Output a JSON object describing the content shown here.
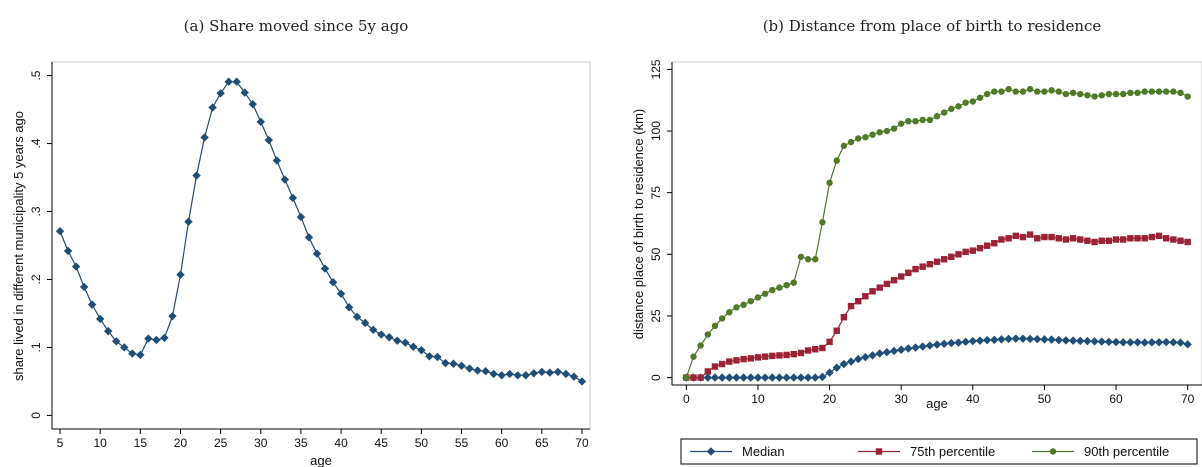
{
  "chart_data": [
    {
      "type": "line",
      "title": "(a) Share moved since 5y ago",
      "xlabel": "age",
      "ylabel": "share lived in different municipality 5 years ago",
      "xlim": [
        4,
        71
      ],
      "ylim": [
        -0.02,
        0.52
      ],
      "xticks": [
        5,
        10,
        15,
        20,
        25,
        30,
        35,
        40,
        45,
        50,
        55,
        60,
        65,
        70
      ],
      "yticks": [
        0,
        0.1,
        0.2,
        0.3,
        0.4,
        0.5
      ],
      "ytick_labels": [
        "0",
        ".1",
        ".2",
        ".3",
        ".4",
        ".5"
      ],
      "legend": "none",
      "grid": false,
      "colors": {
        "line": "#1f4e79",
        "marker": "#1f4e79"
      },
      "marker": "diamond",
      "x": [
        5,
        6,
        7,
        8,
        9,
        10,
        11,
        12,
        13,
        14,
        15,
        16,
        17,
        18,
        19,
        20,
        21,
        22,
        23,
        24,
        25,
        26,
        27,
        28,
        29,
        30,
        31,
        32,
        33,
        34,
        35,
        36,
        37,
        38,
        39,
        40,
        41,
        42,
        43,
        44,
        45,
        46,
        47,
        48,
        49,
        50,
        51,
        52,
        53,
        54,
        55,
        56,
        57,
        58,
        59,
        60,
        61,
        62,
        63,
        64,
        65,
        66,
        67,
        68,
        69,
        70
      ],
      "values": [
        0.271,
        0.242,
        0.219,
        0.189,
        0.163,
        0.142,
        0.124,
        0.109,
        0.1,
        0.091,
        0.089,
        0.113,
        0.111,
        0.114,
        0.146,
        0.207,
        0.285,
        0.353,
        0.409,
        0.453,
        0.474,
        0.491,
        0.491,
        0.475,
        0.458,
        0.432,
        0.405,
        0.375,
        0.347,
        0.32,
        0.292,
        0.262,
        0.238,
        0.216,
        0.196,
        0.179,
        0.159,
        0.145,
        0.136,
        0.126,
        0.119,
        0.115,
        0.11,
        0.107,
        0.101,
        0.096,
        0.087,
        0.086,
        0.077,
        0.076,
        0.073,
        0.069,
        0.066,
        0.065,
        0.061,
        0.059,
        0.061,
        0.059,
        0.059,
        0.062,
        0.064,
        0.063,
        0.064,
        0.061,
        0.057,
        0.05
      ]
    },
    {
      "type": "line",
      "title": "(b) Distance from place of birth to residence",
      "xlabel": "age",
      "ylabel": "distance place of birth to residence (km)",
      "xlim": [
        -2,
        72
      ],
      "ylim": [
        -3,
        128
      ],
      "xticks": [
        0,
        10,
        20,
        30,
        40,
        50,
        60,
        70
      ],
      "yticks": [
        0,
        25,
        50,
        75,
        100,
        125
      ],
      "ytick_labels": [
        "0",
        "25",
        "50",
        "75",
        "100",
        "125"
      ],
      "legend": "bottom",
      "grid": false,
      "x": [
        0,
        1,
        2,
        3,
        4,
        5,
        6,
        7,
        8,
        9,
        10,
        11,
        12,
        13,
        14,
        15,
        16,
        17,
        18,
        19,
        20,
        21,
        22,
        23,
        24,
        25,
        26,
        27,
        28,
        29,
        30,
        31,
        32,
        33,
        34,
        35,
        36,
        37,
        38,
        39,
        40,
        41,
        42,
        43,
        44,
        45,
        46,
        47,
        48,
        49,
        50,
        51,
        52,
        53,
        54,
        55,
        56,
        57,
        58,
        59,
        60,
        61,
        62,
        63,
        64,
        65,
        66,
        67,
        68,
        69,
        70
      ],
      "series": [
        {
          "name": "Median",
          "color": "#1f4e79",
          "marker": "diamond",
          "values": [
            0,
            0,
            0,
            0,
            0,
            0,
            0,
            0,
            0,
            0,
            0,
            0,
            0,
            0,
            0,
            0,
            0,
            0,
            0,
            0.3,
            2,
            4,
            5.5,
            6.5,
            7.5,
            8.3,
            9,
            9.8,
            10.3,
            10.8,
            11.3,
            11.8,
            12.2,
            12.6,
            13,
            13.4,
            13.7,
            14,
            14.2,
            14.5,
            14.8,
            15,
            15.2,
            15.3,
            15.5,
            15.7,
            15.8,
            15.8,
            15.7,
            15.6,
            15.5,
            15.4,
            15.2,
            15.1,
            15,
            14.9,
            14.8,
            14.7,
            14.6,
            14.5,
            14.4,
            14.3,
            14.3,
            14.3,
            14.2,
            14.3,
            14.3,
            14.4,
            14.3,
            14.2,
            13.5
          ]
        },
        {
          "name": "75th percentile",
          "color": "#9b2335",
          "marker": "square",
          "values": [
            0,
            0,
            0,
            2.5,
            4.5,
            5.5,
            6.5,
            7,
            7.5,
            7.8,
            8.2,
            8.5,
            8.8,
            9,
            9.2,
            9.5,
            10,
            11,
            11.5,
            12,
            14.5,
            19,
            24.5,
            29,
            31,
            33,
            35,
            36.5,
            38,
            39.5,
            41,
            42.5,
            44,
            45,
            46,
            47,
            48,
            49,
            50,
            51,
            51.5,
            52.5,
            53.5,
            54.5,
            56,
            56.5,
            57.5,
            57,
            58,
            56.5,
            57,
            57,
            56.5,
            56,
            56.5,
            56,
            55.5,
            55,
            55.5,
            55.5,
            56,
            56,
            56.5,
            56.5,
            56.5,
            57,
            57.5,
            56.5,
            56,
            55.5,
            55
          ]
        },
        {
          "name": "90th percentile",
          "color": "#4f7a28",
          "marker": "circle",
          "values": [
            0,
            8.5,
            13,
            17.5,
            21,
            24,
            26.5,
            28.5,
            29.5,
            31,
            32.5,
            34,
            35.5,
            36.5,
            37.5,
            38.5,
            49,
            48,
            48,
            63,
            79,
            88,
            94,
            95.5,
            97,
            97.5,
            98.5,
            99.5,
            100,
            101,
            103,
            104,
            104,
            104.5,
            104.5,
            106,
            107.5,
            109,
            110,
            111.5,
            112,
            113.5,
            115,
            116,
            116,
            117,
            116,
            116,
            117,
            116,
            116,
            116.5,
            116,
            115,
            115.5,
            115,
            114.5,
            114,
            114.5,
            115,
            115,
            115,
            115.5,
            115.5,
            116,
            116,
            116,
            116,
            116,
            115.5,
            114
          ]
        }
      ]
    }
  ]
}
